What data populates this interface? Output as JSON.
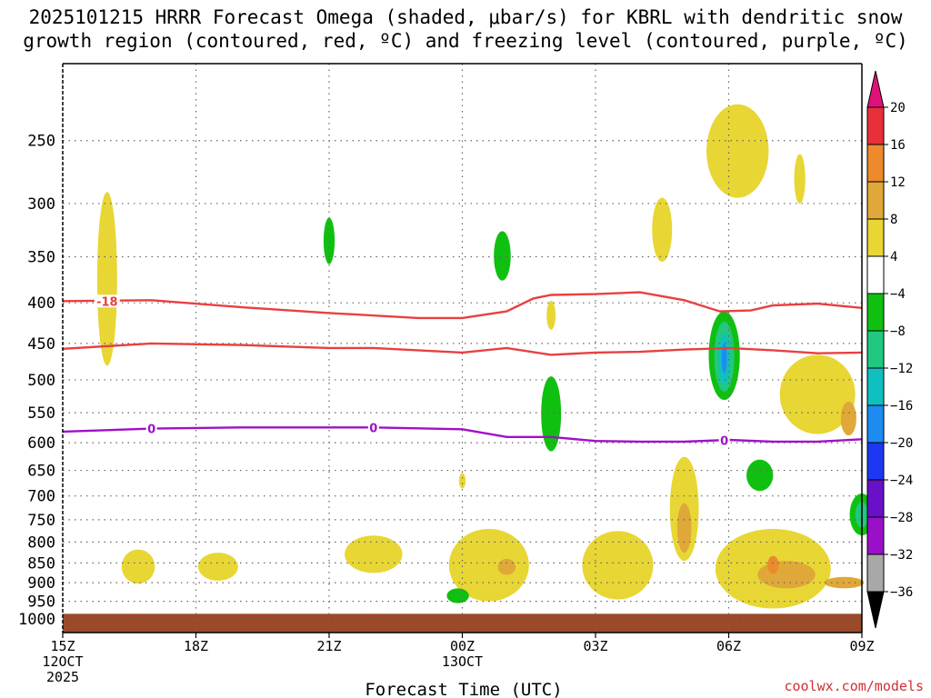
{
  "title_line1": "2025101215 HRRR Forecast Omega (shaded, μbar/s) for KBRL with dendritic snow",
  "title_line2": "growth region (contoured, red, ºC) and freezing level (contoured, purple, ºC)",
  "xlabel": "Forecast Time (UTC)",
  "credit": "coolwx.com/models",
  "chart_data": {
    "type": "time-height cross section",
    "x_range_hours": [
      0,
      18
    ],
    "y_axis": {
      "scale": "log-pressure",
      "units": "mb",
      "range": [
        1040,
        200
      ],
      "ticks": [
        250,
        300,
        350,
        400,
        450,
        500,
        550,
        600,
        650,
        700,
        750,
        800,
        850,
        900,
        950,
        1000
      ]
    },
    "x_ticks": [
      {
        "hour": 0,
        "lines": [
          "15Z",
          "12OCT",
          "2025"
        ]
      },
      {
        "hour": 3,
        "lines": [
          "18Z"
        ]
      },
      {
        "hour": 6,
        "lines": [
          "21Z"
        ]
      },
      {
        "hour": 9,
        "lines": [
          "00Z",
          "13OCT"
        ]
      },
      {
        "hour": 12,
        "lines": [
          "03Z"
        ]
      },
      {
        "hour": 15,
        "lines": [
          "06Z"
        ]
      },
      {
        "hour": 18,
        "lines": [
          "09Z"
        ]
      }
    ],
    "colorbar": {
      "labels": [
        "20",
        "16",
        "12",
        "8",
        "4",
        "−4",
        "−8",
        "−12",
        "−16",
        "−20",
        "−24",
        "−28",
        "−32",
        "−36"
      ],
      "colors": [
        "#e8303a",
        "#ec8a2c",
        "#e0a838",
        "#e8d634",
        "#ffffff",
        "#10c010",
        "#20c880",
        "#10c0c0",
        "#1c8cf0",
        "#1c38f0",
        "#6a10c8",
        "#9a10c8",
        "#a8a8a8"
      ],
      "top_extend_color": "#e0107a",
      "bottom_extend_color": "#000000"
    },
    "surface_color": "#9a4a28",
    "surface_pressure_mb": 985,
    "contours": [
      {
        "name": "dgz-top",
        "color": "#e84040",
        "label": "-18",
        "label_hour": 1.0,
        "points": [
          [
            0,
            398
          ],
          [
            2,
            397
          ],
          [
            4,
            405
          ],
          [
            6,
            412
          ],
          [
            8,
            418
          ],
          [
            9,
            418
          ],
          [
            10,
            410
          ],
          [
            10.6,
            395
          ],
          [
            11,
            391
          ],
          [
            12,
            390
          ],
          [
            13,
            388
          ],
          [
            14,
            397
          ],
          [
            14.8,
            410
          ],
          [
            15.5,
            409
          ],
          [
            16,
            403
          ],
          [
            17,
            401
          ],
          [
            18,
            406
          ]
        ]
      },
      {
        "name": "dgz-bottom",
        "color": "#e84040",
        "label": "",
        "label_hour": 0,
        "points": [
          [
            0,
            457
          ],
          [
            2,
            450
          ],
          [
            4,
            452
          ],
          [
            6,
            456
          ],
          [
            7,
            456
          ],
          [
            8,
            459
          ],
          [
            9,
            462
          ],
          [
            10,
            456
          ],
          [
            11,
            465
          ],
          [
            12,
            462
          ],
          [
            13,
            461
          ],
          [
            14,
            458
          ],
          [
            15,
            456
          ],
          [
            16,
            459
          ],
          [
            17,
            463
          ],
          [
            18,
            462
          ]
        ]
      },
      {
        "name": "freezing-level",
        "color": "#a010c8",
        "label": "0",
        "label_hour": 2.0,
        "points": [
          [
            0,
            581
          ],
          [
            2,
            576
          ],
          [
            4,
            574
          ],
          [
            6,
            574
          ],
          [
            7,
            574
          ],
          [
            9,
            577
          ],
          [
            10,
            590
          ],
          [
            11,
            590
          ],
          [
            12,
            597
          ],
          [
            13,
            598
          ],
          [
            14,
            598
          ],
          [
            15,
            595
          ],
          [
            16,
            598
          ],
          [
            17,
            598
          ],
          [
            18,
            594
          ]
        ]
      }
    ],
    "contour_labels": [
      {
        "text": "-18",
        "hour": 1.0,
        "p": 398,
        "color": "#e84040"
      },
      {
        "text": "0",
        "hour": 2.0,
        "p": 576,
        "color": "#a010c8"
      },
      {
        "text": "0",
        "hour": 7.0,
        "p": 574,
        "color": "#a010c8"
      },
      {
        "text": "0",
        "hour": 14.9,
        "p": 596,
        "color": "#a010c8"
      }
    ],
    "shaded_regions": [
      {
        "color": "#e8d634",
        "hour": 1.0,
        "p": 385,
        "dh": 0.45,
        "dp": 190
      },
      {
        "color": "#e8d634",
        "hour": 1.7,
        "p": 860,
        "dh": 0.75,
        "dp": 85
      },
      {
        "color": "#e8d634",
        "hour": 3.5,
        "p": 860,
        "dh": 0.9,
        "dp": 70
      },
      {
        "color": "#e8d634",
        "hour": 7.0,
        "p": 830,
        "dh": 1.3,
        "dp": 90
      },
      {
        "color": "#e8d634",
        "hour": 9.6,
        "p": 860,
        "dh": 1.8,
        "dp": 180
      },
      {
        "color": "#e8d634",
        "hour": 12.5,
        "p": 860,
        "dh": 1.6,
        "dp": 170
      },
      {
        "color": "#e8d634",
        "hour": 16.0,
        "p": 870,
        "dh": 2.6,
        "dp": 200
      },
      {
        "color": "#e8d634",
        "hour": 14.0,
        "p": 735,
        "dh": 0.65,
        "dp": 220
      },
      {
        "color": "#e8d634",
        "hour": 17.0,
        "p": 525,
        "dh": 1.7,
        "dp": 120
      },
      {
        "color": "#e8d634",
        "hour": 15.2,
        "p": 260,
        "dh": 1.4,
        "dp": 70
      },
      {
        "color": "#e8d634",
        "hour": 13.5,
        "p": 325,
        "dh": 0.45,
        "dp": 60
      },
      {
        "color": "#e8d634",
        "hour": 9.0,
        "p": 670,
        "dh": 0.15,
        "dp": 30
      },
      {
        "color": "#e8d634",
        "hour": 11.0,
        "p": 415,
        "dh": 0.2,
        "dp": 35
      },
      {
        "color": "#e8d634",
        "hour": 16.6,
        "p": 280,
        "dh": 0.25,
        "dp": 40
      },
      {
        "color": "#e0a838",
        "hour": 14.0,
        "p": 770,
        "dh": 0.32,
        "dp": 110
      },
      {
        "color": "#e0a838",
        "hour": 10.0,
        "p": 860,
        "dh": 0.4,
        "dp": 40
      },
      {
        "color": "#e0a838",
        "hour": 16.3,
        "p": 880,
        "dh": 1.3,
        "dp": 70
      },
      {
        "color": "#e0a838",
        "hour": 17.6,
        "p": 900,
        "dh": 0.9,
        "dp": 30
      },
      {
        "color": "#e0a838",
        "hour": 17.7,
        "p": 560,
        "dh": 0.35,
        "dp": 55
      },
      {
        "color": "#ec8a2c",
        "hour": 16.0,
        "p": 855,
        "dh": 0.25,
        "dp": 45
      },
      {
        "color": "#10c010",
        "hour": 6.0,
        "p": 335,
        "dh": 0.25,
        "dp": 45
      },
      {
        "color": "#10c010",
        "hour": 9.9,
        "p": 350,
        "dh": 0.38,
        "dp": 50
      },
      {
        "color": "#10c010",
        "hour": 11.0,
        "p": 555,
        "dh": 0.45,
        "dp": 120
      },
      {
        "color": "#10c010",
        "hour": 8.9,
        "p": 935,
        "dh": 0.5,
        "dp": 40
      },
      {
        "color": "#10c010",
        "hour": 14.9,
        "p": 470,
        "dh": 0.7,
        "dp": 120
      },
      {
        "color": "#10c010",
        "hour": 15.7,
        "p": 660,
        "dh": 0.6,
        "dp": 60
      },
      {
        "color": "#10c010",
        "hour": 18.0,
        "p": 740,
        "dh": 0.55,
        "dp": 90
      },
      {
        "color": "#20c880",
        "hour": 14.9,
        "p": 470,
        "dh": 0.45,
        "dp": 95
      },
      {
        "color": "#20c880",
        "hour": 18.0,
        "p": 740,
        "dh": 0.3,
        "dp": 55
      },
      {
        "color": "#10c0c0",
        "hour": 14.9,
        "p": 472,
        "dh": 0.25,
        "dp": 70
      },
      {
        "color": "#1c8cf0",
        "hour": 14.9,
        "p": 470,
        "dh": 0.12,
        "dp": 40
      }
    ]
  }
}
